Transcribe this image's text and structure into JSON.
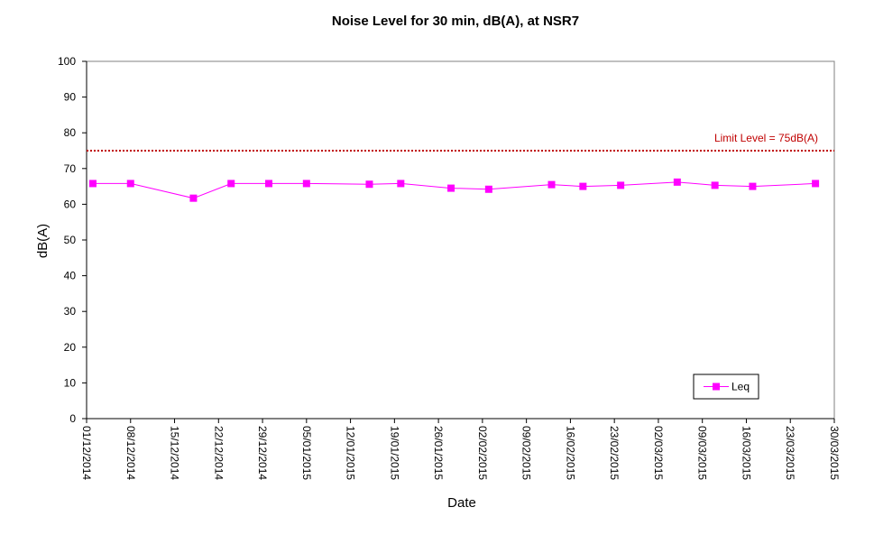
{
  "chart_data": {
    "type": "line",
    "title": "Noise Level for 30 min, dB(A), at NSR7",
    "xlabel": "Date",
    "ylabel": "dB(A)",
    "ylim": [
      0,
      100
    ],
    "yticks": [
      0,
      10,
      20,
      30,
      40,
      50,
      60,
      70,
      80,
      90,
      100
    ],
    "xlim": [
      "01/12/2014",
      "30/03/2015"
    ],
    "xticks": [
      "01/12/2014",
      "08/12/2014",
      "15/12/2014",
      "22/12/2014",
      "29/12/2014",
      "05/01/2015",
      "12/01/2015",
      "19/01/2015",
      "26/01/2015",
      "02/02/2015",
      "09/02/2015",
      "16/02/2015",
      "23/02/2015",
      "02/03/2015",
      "09/03/2015",
      "16/03/2015",
      "23/03/2015",
      "30/03/2015"
    ],
    "grid": false,
    "legend_position": "bottom-right",
    "series": [
      {
        "name": "Leq",
        "color": "#FF00FF",
        "marker": "square",
        "points": [
          {
            "x": "02/12/2014",
            "y": 65.8
          },
          {
            "x": "08/12/2014",
            "y": 65.8
          },
          {
            "x": "18/12/2014",
            "y": 61.7
          },
          {
            "x": "24/12/2014",
            "y": 65.8
          },
          {
            "x": "30/12/2014",
            "y": 65.8
          },
          {
            "x": "05/01/2015",
            "y": 65.8
          },
          {
            "x": "15/01/2015",
            "y": 65.6
          },
          {
            "x": "20/01/2015",
            "y": 65.8
          },
          {
            "x": "28/01/2015",
            "y": 64.5
          },
          {
            "x": "03/02/2015",
            "y": 64.2
          },
          {
            "x": "13/02/2015",
            "y": 65.5
          },
          {
            "x": "18/02/2015",
            "y": 65.0
          },
          {
            "x": "24/02/2015",
            "y": 65.3
          },
          {
            "x": "05/03/2015",
            "y": 66.2
          },
          {
            "x": "11/03/2015",
            "y": 65.3
          },
          {
            "x": "17/03/2015",
            "y": 65.0
          },
          {
            "x": "27/03/2015",
            "y": 65.8
          }
        ]
      }
    ],
    "reference_lines": [
      {
        "label": "Limit Level  = 75dB(A)",
        "y": 75,
        "color": "#C00000",
        "style": "dotted"
      }
    ]
  }
}
